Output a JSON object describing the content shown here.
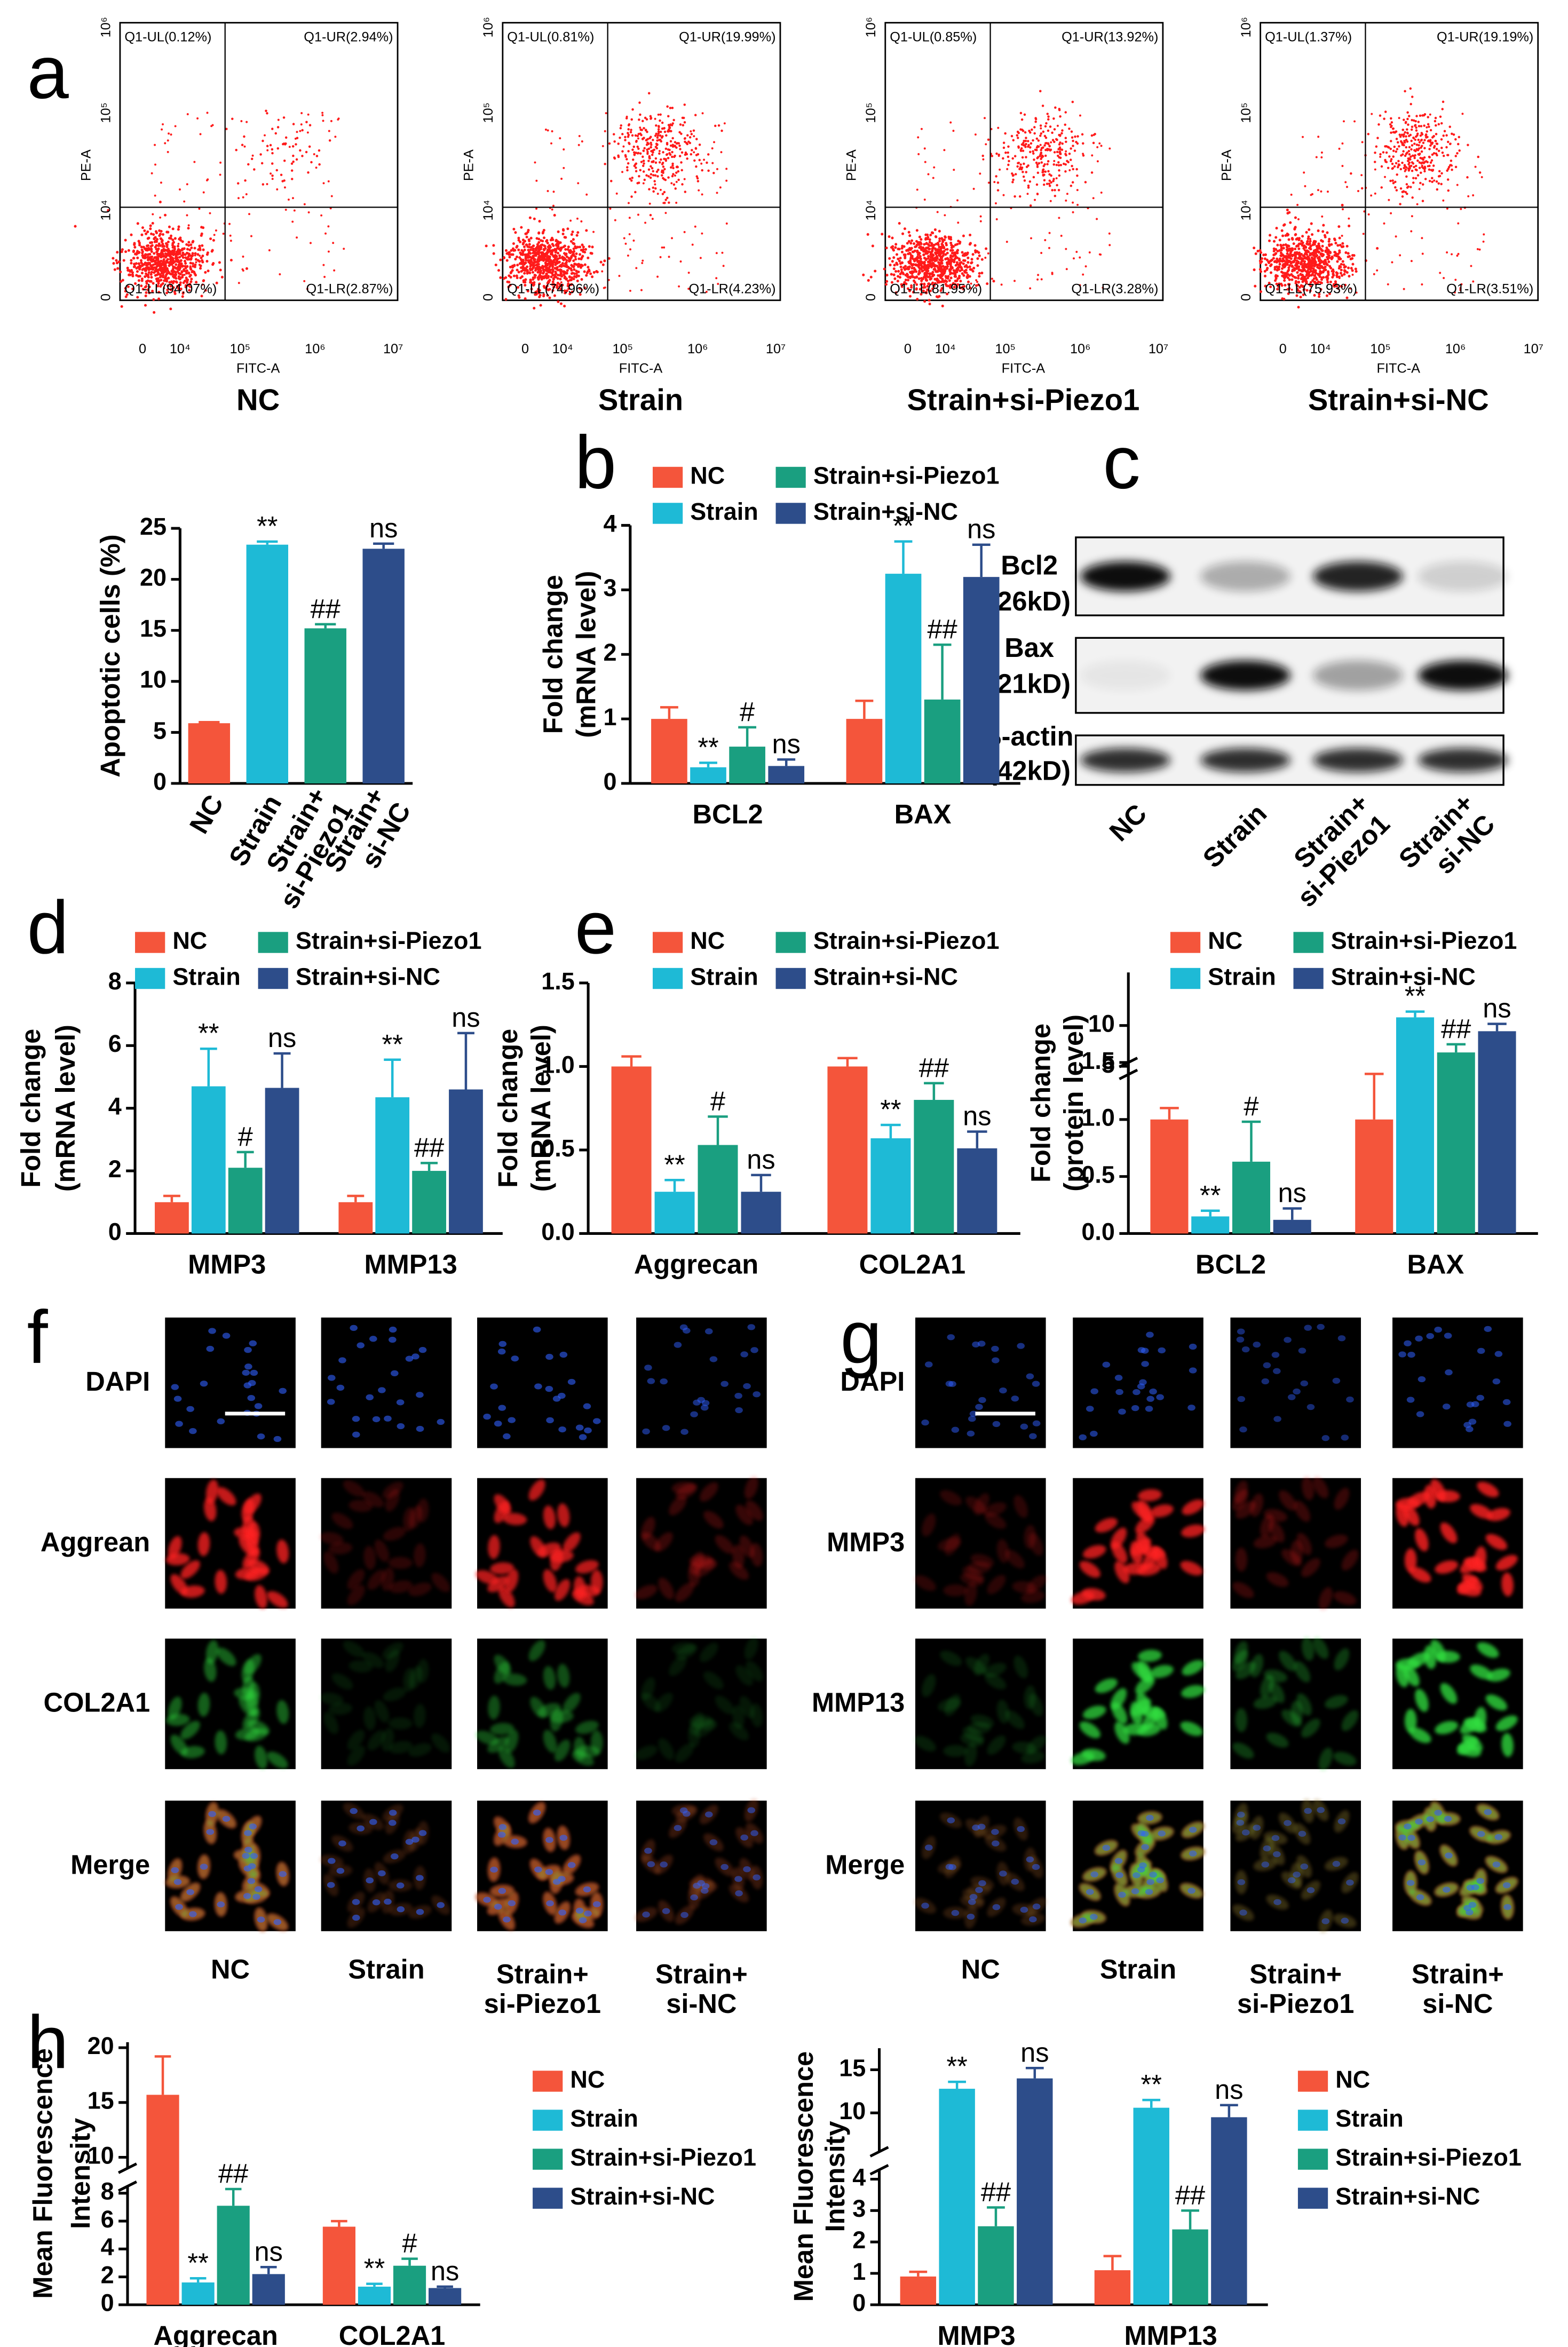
{
  "panel_labels": [
    "a",
    "b",
    "c",
    "d",
    "e",
    "f",
    "g",
    "h"
  ],
  "flow_cytometry": {
    "x_label": "FITC-A",
    "y_label": "PE-A",
    "x_ticks": [
      "0",
      "10⁴",
      "10⁵",
      "10⁶",
      "10⁷"
    ],
    "y_ticks": [
      "0",
      "10⁴",
      "10⁵",
      "10⁶"
    ],
    "plots": [
      {
        "title": "NC",
        "UL": "Q1-UL(0.12%)",
        "UR": "Q1-UR(2.94%)",
        "LL": "Q1-LL(94.07%)",
        "LR": "Q1-LR(2.87%)"
      },
      {
        "title": "Strain",
        "UL": "Q1-UL(0.81%)",
        "UR": "Q1-UR(19.99%)",
        "LL": "Q1-LL(74.96%)",
        "LR": "Q1-LR(4.23%)"
      },
      {
        "title": "Strain+si-Piezo1",
        "UL": "Q1-UL(0.85%)",
        "UR": "Q1-UR(13.92%)",
        "LL": "Q1-LL(81.95%)",
        "LR": "Q1-LR(3.28%)"
      },
      {
        "title": "Strain+si-NC",
        "UL": "Q1-UL(1.37%)",
        "UR": "Q1-UR(19.19%)",
        "LL": "Q1-LL(75.93%)",
        "LR": "Q1-LR(3.51%)"
      }
    ]
  },
  "western_blot": {
    "rows": [
      {
        "protein": "Bcl2",
        "size": "(26kD)"
      },
      {
        "protein": "Bax",
        "size": "(21kD)"
      },
      {
        "protein": "β-actin",
        "size": "(42kD)"
      }
    ],
    "lanes": [
      [
        "NC"
      ],
      [
        "Strain"
      ],
      [
        "Strain+",
        "si-Piezo1"
      ],
      [
        "Strain+",
        "si-NC"
      ]
    ]
  },
  "immunofluorescence": [
    {
      "rows": [
        "DAPI",
        "Aggrean",
        "COL2A1",
        "Merge"
      ],
      "columns": [
        [
          "NC"
        ],
        [
          "Strain"
        ],
        [
          "Strain+",
          "si-Piezo1"
        ],
        [
          "Strain+",
          "si-NC"
        ]
      ]
    },
    {
      "rows": [
        "DAPI",
        "MMP3",
        "MMP13",
        "Merge"
      ],
      "columns": [
        [
          "NC"
        ],
        [
          "Strain"
        ],
        [
          "Strain+",
          "si-Piezo1"
        ],
        [
          "Strain+",
          "si-NC"
        ]
      ]
    }
  ],
  "chart_data": [
    {
      "type": "bar",
      "ylabel": [
        "Apoptotic cells (%)"
      ],
      "categories": [
        [
          "NC"
        ],
        [
          "Strain"
        ],
        [
          "Strain+",
          "si-Piezo1"
        ],
        [
          "Strain+",
          "si-NC"
        ]
      ],
      "colors": [
        "#f4553b",
        "#1ebad6",
        "#1a9f80",
        "#2d4d8a"
      ],
      "values": [
        5.9,
        23.4,
        15.2,
        23.0
      ],
      "errors": [
        0.1,
        0.3,
        0.4,
        0.5
      ],
      "annotations": [
        null,
        "**",
        "##",
        "ns"
      ],
      "ylim": [
        0,
        25
      ],
      "yticks": [
        0,
        5,
        10,
        15,
        20,
        25
      ]
    },
    {
      "type": "bar",
      "ylabel": [
        "Fold change",
        "(mRNA level)"
      ],
      "categories": [
        "BCL2",
        "BAX"
      ],
      "legend": "top",
      "ylim": [
        0,
        4
      ],
      "yticks": [
        0,
        1,
        2,
        3,
        4
      ],
      "series": [
        {
          "name": "NC",
          "color": "#f4553b",
          "values": [
            1.0,
            1.0
          ],
          "errors": [
            0.18,
            0.28
          ],
          "annotations": [
            null,
            null
          ]
        },
        {
          "name": "Strain",
          "color": "#1ebad6",
          "values": [
            0.25,
            3.25
          ],
          "errors": [
            0.07,
            0.5
          ],
          "annotations": [
            "**",
            "**"
          ]
        },
        {
          "name": "Strain+si-Piezo1",
          "color": "#1a9f80",
          "values": [
            0.57,
            1.3
          ],
          "errors": [
            0.3,
            0.85
          ],
          "annotations": [
            "#",
            "##"
          ]
        },
        {
          "name": "Strain+si-NC",
          "color": "#2d4d8a",
          "values": [
            0.27,
            3.2
          ],
          "errors": [
            0.1,
            0.5
          ],
          "annotations": [
            "ns",
            "ns"
          ]
        }
      ]
    },
    {
      "type": "bar",
      "ylabel": [
        "Fold change",
        "(mRNA level)"
      ],
      "categories": [
        "MMP3",
        "MMP13"
      ],
      "legend": "top",
      "ylim": [
        0,
        8
      ],
      "yticks": [
        0,
        2,
        4,
        6,
        8
      ],
      "series": [
        {
          "name": "NC",
          "color": "#f4553b",
          "values": [
            1.0,
            1.0
          ],
          "errors": [
            0.2,
            0.2
          ],
          "annotations": [
            null,
            null
          ]
        },
        {
          "name": "Strain",
          "color": "#1ebad6",
          "values": [
            4.7,
            4.35
          ],
          "errors": [
            1.2,
            1.2
          ],
          "annotations": [
            "**",
            "**"
          ]
        },
        {
          "name": "Strain+si-Piezo1",
          "color": "#1a9f80",
          "values": [
            2.1,
            2.0
          ],
          "errors": [
            0.5,
            0.25
          ],
          "annotations": [
            "#",
            "##"
          ]
        },
        {
          "name": "Strain+si-NC",
          "color": "#2d4d8a",
          "values": [
            4.65,
            4.6
          ],
          "errors": [
            1.1,
            1.8
          ],
          "annotations": [
            "ns",
            "ns"
          ]
        }
      ]
    },
    {
      "type": "bar",
      "ylabel": [
        "Fold change",
        "(mRNA level)"
      ],
      "categories": [
        "Aggrecan",
        "COL2A1"
      ],
      "legend": "top",
      "ylim": [
        0,
        1.5
      ],
      "yticks": [
        {
          "value": 0,
          "label": "0.0"
        },
        0.5,
        {
          "value": 1,
          "label": "1.0"
        },
        1.5
      ],
      "series": [
        {
          "name": "NC",
          "color": "#f4553b",
          "values": [
            1.0,
            1.0
          ],
          "errors": [
            0.06,
            0.05
          ],
          "annotations": [
            null,
            null
          ]
        },
        {
          "name": "Strain",
          "color": "#1ebad6",
          "values": [
            0.25,
            0.57
          ],
          "errors": [
            0.07,
            0.08
          ],
          "annotations": [
            "**",
            "**"
          ]
        },
        {
          "name": "Strain+si-Piezo1",
          "color": "#1a9f80",
          "values": [
            0.53,
            0.8
          ],
          "errors": [
            0.17,
            0.1
          ],
          "annotations": [
            "#",
            "##"
          ]
        },
        {
          "name": "Strain+si-NC",
          "color": "#2d4d8a",
          "values": [
            0.25,
            0.51
          ],
          "errors": [
            0.1,
            0.1
          ],
          "annotations": [
            "ns",
            "ns"
          ]
        }
      ]
    },
    {
      "type": "bar",
      "ylabel": [
        "Fold change",
        "(protein level)"
      ],
      "categories": [
        "BCL2",
        "BAX"
      ],
      "legend": "top",
      "ylim": [
        [
          0,
          1.5
        ],
        [
          4,
          16.5
        ]
      ],
      "yticks": [
        [
          {
            "value": 0,
            "label": "0.0"
          },
          0.5,
          {
            "value": 1,
            "label": "1.0"
          },
          1.5
        ],
        [
          5,
          10
        ]
      ],
      "series": [
        {
          "name": "NC",
          "color": "#f4553b",
          "values": [
            1.0,
            1.0
          ],
          "errors": [
            0.1,
            0.4
          ],
          "annotations": [
            null,
            null
          ]
        },
        {
          "name": "Strain",
          "color": "#1ebad6",
          "values": [
            0.15,
            11
          ],
          "errors": [
            0.05,
            0.7
          ],
          "annotations": [
            "**",
            "**"
          ]
        },
        {
          "name": "Strain+si-Piezo1",
          "color": "#1a9f80",
          "values": [
            0.63,
            6.7
          ],
          "errors": [
            0.35,
            1.0
          ],
          "annotations": [
            "#",
            "##"
          ]
        },
        {
          "name": "Strain+si-NC",
          "color": "#2d4d8a",
          "values": [
            0.12,
            9.3
          ],
          "errors": [
            0.1,
            0.9
          ],
          "annotations": [
            "ns",
            "ns"
          ]
        }
      ]
    },
    {
      "type": "bar",
      "ylabel": [
        "Mean Fluorescence",
        "Intensity"
      ],
      "categories": [
        "Aggrecan",
        "COL2A1"
      ],
      "legend": "right",
      "ylim": [
        [
          0,
          8.5
        ],
        [
          9,
          20.5
        ]
      ],
      "yticks": [
        [
          0,
          2,
          4,
          6,
          8
        ],
        [
          10,
          15,
          20
        ]
      ],
      "series": [
        {
          "name": "NC",
          "color": "#f4553b",
          "values": [
            15.7,
            5.6
          ],
          "errors": [
            3.5,
            0.4
          ],
          "annotations": [
            null,
            null
          ]
        },
        {
          "name": "Strain",
          "color": "#1ebad6",
          "values": [
            1.6,
            1.3
          ],
          "errors": [
            0.3,
            0.2
          ],
          "annotations": [
            "**",
            "**"
          ]
        },
        {
          "name": "Strain+si-Piezo1",
          "color": "#1a9f80",
          "values": [
            7.1,
            2.8
          ],
          "errors": [
            1.2,
            0.5
          ],
          "annotations": [
            "##",
            "#"
          ]
        },
        {
          "name": "Strain+si-NC",
          "color": "#2d4d8a",
          "values": [
            2.2,
            1.2
          ],
          "errors": [
            0.5,
            0.1
          ],
          "annotations": [
            "ns",
            "ns"
          ]
        }
      ]
    },
    {
      "type": "bar",
      "ylabel": [
        "Mean Fluorescence",
        "Intensity"
      ],
      "categories": [
        "MMP3",
        "MMP13"
      ],
      "legend": "right",
      "ylim": [
        [
          0,
          4.3
        ],
        [
          5.5,
          17.5
        ]
      ],
      "yticks": [
        [
          0,
          1,
          2,
          3,
          4
        ],
        [
          10,
          15
        ]
      ],
      "series": [
        {
          "name": "NC",
          "color": "#f4553b",
          "values": [
            0.9,
            1.1
          ],
          "errors": [
            0.15,
            0.45
          ],
          "annotations": [
            null,
            null
          ]
        },
        {
          "name": "Strain",
          "color": "#1ebad6",
          "values": [
            12.8,
            10.6
          ],
          "errors": [
            0.8,
            0.9
          ],
          "annotations": [
            "**",
            "**"
          ]
        },
        {
          "name": "Strain+si-Piezo1",
          "color": "#1a9f80",
          "values": [
            2.5,
            2.4
          ],
          "errors": [
            0.6,
            0.6
          ],
          "annotations": [
            "##",
            "##"
          ]
        },
        {
          "name": "Strain+si-NC",
          "color": "#2d4d8a",
          "values": [
            14,
            9.5
          ],
          "errors": [
            1.2,
            1.4
          ],
          "annotations": [
            "ns",
            "ns"
          ]
        }
      ]
    }
  ]
}
